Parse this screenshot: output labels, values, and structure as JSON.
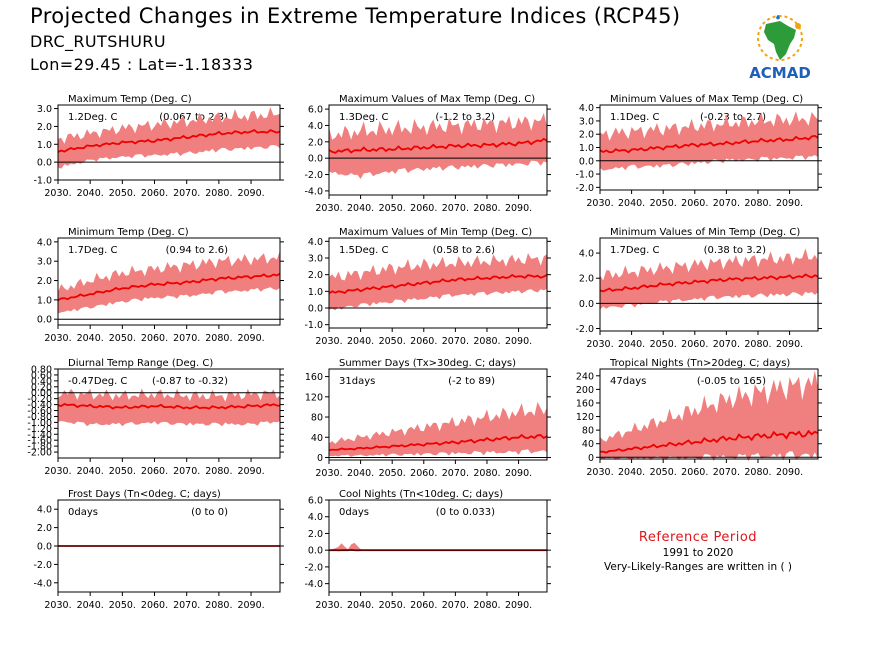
{
  "header": {
    "title": "Projected Changes in Extreme Temperature Indices (RCP45)",
    "location": "DRC_RUTSHURU",
    "coords": "Lon=29.45 : Lat=-1.18333"
  },
  "logo": {
    "text": "ACMAD",
    "icon": "africa-map-logo-icon"
  },
  "reference": {
    "title": "Reference Period",
    "years": "1991 to 2020",
    "note": "Very-Likely-Ranges are written in ( )"
  },
  "colors": {
    "band": "#f08080",
    "line": "#ee0000",
    "zero": "#000000"
  },
  "chart_data": [
    {
      "type": "area",
      "title": "Maximum Temp (Deg. C)",
      "value": "1.2Deg. C",
      "range": "(0.067 to 2.3)",
      "xlim": [
        2030,
        2099
      ],
      "ylim": [
        -1.0,
        3.2
      ],
      "yticks": [
        -1.0,
        0.0,
        1.0,
        2.0,
        3.0
      ],
      "ydec": 1,
      "x_ticks": [
        "2030.",
        "2040.",
        "2050.",
        "2060.",
        "2070.",
        "2080.",
        "2090."
      ],
      "series": [
        {
          "x": [
            2030,
            2040,
            2050,
            2060,
            2070,
            2080,
            2090,
            2099
          ],
          "median": [
            0.6,
            0.9,
            1.1,
            1.2,
            1.4,
            1.6,
            1.7,
            1.7
          ],
          "low": [
            -0.2,
            0.2,
            0.4,
            0.5,
            0.6,
            0.8,
            0.9,
            1.0
          ],
          "high": [
            1.3,
            1.6,
            1.9,
            2.1,
            2.3,
            2.5,
            2.6,
            2.7
          ]
        }
      ]
    },
    {
      "type": "area",
      "title": "Maximum Values of Max Temp (Deg. C)",
      "value": "1.3Deg. C",
      "range": "(-1.2 to 3.2)",
      "xlim": [
        2030,
        2099
      ],
      "ylim": [
        -4.5,
        6.5
      ],
      "yticks": [
        -4.0,
        -2.0,
        0.0,
        2.0,
        4.0,
        6.0
      ],
      "ydec": 1,
      "x_ticks": [
        "2030.",
        "2040.",
        "2050.",
        "2060.",
        "2070.",
        "2080.",
        "2090."
      ],
      "series": [
        {
          "x": [
            2030,
            2040,
            2050,
            2060,
            2070,
            2080,
            2090,
            2099
          ],
          "median": [
            0.8,
            1.0,
            1.1,
            1.3,
            1.5,
            1.6,
            1.8,
            2.2
          ],
          "low": [
            -1.5,
            -1.8,
            -1.3,
            -1.0,
            -0.8,
            -0.6,
            -0.4,
            -0.2
          ],
          "high": [
            2.8,
            3.3,
            3.6,
            3.8,
            4.0,
            4.2,
            4.4,
            4.6
          ]
        }
      ]
    },
    {
      "type": "area",
      "title": "Minimum Values of Max Temp (Deg. C)",
      "value": "1.1Deg. C",
      "range": "(-0.23 to 2.7)",
      "xlim": [
        2030,
        2099
      ],
      "ylim": [
        -2.2,
        4.2
      ],
      "yticks": [
        -2.0,
        -1.0,
        0.0,
        1.0,
        2.0,
        3.0,
        4.0
      ],
      "ydec": 1,
      "x_ticks": [
        "2030.",
        "2040.",
        "2050.",
        "2060.",
        "2070.",
        "2080.",
        "2090."
      ],
      "series": [
        {
          "x": [
            2030,
            2040,
            2050,
            2060,
            2070,
            2080,
            2090,
            2099
          ],
          "median": [
            0.7,
            0.8,
            1.0,
            1.2,
            1.3,
            1.5,
            1.6,
            1.8
          ],
          "low": [
            -0.5,
            -0.3,
            -0.2,
            0.0,
            0.2,
            0.3,
            0.4,
            0.5
          ],
          "high": [
            2.0,
            2.2,
            2.4,
            2.6,
            2.8,
            3.0,
            3.1,
            3.2
          ]
        }
      ]
    },
    {
      "type": "area",
      "title": "Minimum Temp (Deg. C)",
      "value": "1.7Deg. C",
      "range": "(0.94 to 2.6)",
      "xlim": [
        2030,
        2099
      ],
      "ylim": [
        -0.3,
        4.2
      ],
      "yticks": [
        0.0,
        1.0,
        2.0,
        3.0,
        4.0
      ],
      "ydec": 1,
      "x_ticks": [
        "2030.",
        "2040.",
        "2050.",
        "2060.",
        "2070.",
        "2080.",
        "2090."
      ],
      "series": [
        {
          "x": [
            2030,
            2040,
            2050,
            2060,
            2070,
            2080,
            2090,
            2099
          ],
          "median": [
            1.0,
            1.3,
            1.6,
            1.8,
            1.9,
            2.1,
            2.2,
            2.3
          ],
          "low": [
            0.4,
            0.7,
            1.0,
            1.2,
            1.3,
            1.5,
            1.6,
            1.7
          ],
          "high": [
            1.5,
            2.0,
            2.4,
            2.6,
            2.8,
            3.0,
            3.1,
            3.2
          ]
        }
      ]
    },
    {
      "type": "area",
      "title": "Maximum Values of Min Temp (Deg. C)",
      "value": "1.5Deg. C",
      "range": "(0.58 to 2.6)",
      "xlim": [
        2030,
        2099
      ],
      "ylim": [
        -1.2,
        4.2
      ],
      "yticks": [
        -1.0,
        0.0,
        1.0,
        2.0,
        3.0,
        4.0
      ],
      "ydec": 1,
      "x_ticks": [
        "2030.",
        "2040.",
        "2050.",
        "2060.",
        "2070.",
        "2080.",
        "2090."
      ],
      "series": [
        {
          "x": [
            2030,
            2040,
            2050,
            2060,
            2070,
            2080,
            2090,
            2099
          ],
          "median": [
            0.9,
            1.1,
            1.3,
            1.5,
            1.7,
            1.8,
            1.9,
            1.9
          ],
          "low": [
            0.0,
            0.3,
            0.5,
            0.7,
            0.9,
            1.0,
            1.1,
            1.2
          ],
          "high": [
            1.8,
            2.1,
            2.4,
            2.6,
            2.7,
            2.8,
            2.9,
            3.0
          ]
        }
      ]
    },
    {
      "type": "area",
      "title": "Minimum Values of Min Temp (Deg. C)",
      "value": "1.7Deg. C",
      "range": "(0.38 to 3.2)",
      "xlim": [
        2030,
        2099
      ],
      "ylim": [
        -2.2,
        5.2
      ],
      "yticks": [
        -2.0,
        0.0,
        2.0,
        4.0
      ],
      "ydec": 1,
      "x_ticks": [
        "2030.",
        "2040.",
        "2050.",
        "2060.",
        "2070.",
        "2080.",
        "2090."
      ],
      "series": [
        {
          "x": [
            2030,
            2040,
            2050,
            2060,
            2070,
            2080,
            2090,
            2099
          ],
          "median": [
            1.0,
            1.2,
            1.5,
            1.7,
            1.9,
            2.0,
            2.1,
            2.2
          ],
          "low": [
            -0.2,
            0.0,
            0.3,
            0.5,
            0.7,
            0.8,
            0.9,
            1.0
          ],
          "high": [
            2.2,
            2.5,
            2.8,
            3.1,
            3.3,
            3.5,
            3.6,
            3.8
          ]
        }
      ]
    },
    {
      "type": "area",
      "title": "Diurnal Temp Range (Deg. C)",
      "value": "-0.47Deg. C",
      "range": "(-0.87 to -0.32)",
      "xlim": [
        2030,
        2099
      ],
      "ylim": [
        -2.2,
        0.8
      ],
      "yticks": [
        -2.0,
        -1.8,
        -1.6,
        -1.4,
        -1.2,
        -1.0,
        -0.8,
        -0.6,
        -0.4,
        -0.2,
        0.0,
        0.2,
        0.4,
        0.6,
        0.8
      ],
      "ydec": 2,
      "x_ticks": [
        "2030.",
        "2040.",
        "2050.",
        "2060.",
        "2070.",
        "2080.",
        "2090."
      ],
      "series": [
        {
          "x": [
            2030,
            2040,
            2050,
            2060,
            2070,
            2080,
            2090,
            2099
          ],
          "median": [
            -0.4,
            -0.45,
            -0.5,
            -0.45,
            -0.5,
            -0.5,
            -0.45,
            -0.4
          ],
          "low": [
            -0.9,
            -1.0,
            -1.0,
            -0.95,
            -1.0,
            -1.0,
            -1.0,
            -0.9
          ],
          "high": [
            0.0,
            -0.05,
            -0.1,
            -0.05,
            -0.1,
            -0.1,
            -0.05,
            0.0
          ]
        }
      ]
    },
    {
      "type": "area",
      "title": "Summer Days (Tx>30deg. C; days)",
      "value": "31days",
      "range": "(-2 to 89)",
      "xlim": [
        2030,
        2099
      ],
      "ylim": [
        -5,
        175
      ],
      "yticks": [
        0,
        40,
        80,
        120,
        160
      ],
      "ydec": 0,
      "x_ticks": [
        "2030.",
        "2040.",
        "2050.",
        "2060.",
        "2070.",
        "2080.",
        "2090."
      ],
      "series": [
        {
          "x": [
            2030,
            2040,
            2050,
            2060,
            2070,
            2080,
            2090,
            2099
          ],
          "median": [
            15,
            18,
            22,
            26,
            30,
            35,
            40,
            42
          ],
          "low": [
            5,
            6,
            8,
            10,
            12,
            14,
            16,
            18
          ],
          "high": [
            30,
            40,
            50,
            60,
            70,
            80,
            90,
            95
          ]
        }
      ]
    },
    {
      "type": "area",
      "title": "Tropical Nights (Tn>20deg. C; days)",
      "value": "47days",
      "range": "(-0.05 to 165)",
      "xlim": [
        2030,
        2099
      ],
      "ylim": [
        -5,
        260
      ],
      "yticks": [
        0,
        40,
        80,
        120,
        160,
        200,
        240
      ],
      "ydec": 0,
      "x_ticks": [
        "2030.",
        "2040.",
        "2050.",
        "2060.",
        "2070.",
        "2080.",
        "2090."
      ],
      "series": [
        {
          "x": [
            2030,
            2040,
            2050,
            2060,
            2070,
            2080,
            2090,
            2099
          ],
          "median": [
            15,
            25,
            35,
            45,
            55,
            62,
            68,
            70
          ],
          "low": [
            0,
            2,
            5,
            8,
            12,
            15,
            18,
            20
          ],
          "high": [
            50,
            80,
            110,
            140,
            170,
            190,
            210,
            220
          ]
        }
      ]
    },
    {
      "type": "area",
      "title": "Frost Days (Tn<0deg. C; days)",
      "value": "0days",
      "range": "(0 to 0)",
      "xlim": [
        2030,
        2099
      ],
      "ylim": [
        -5,
        5
      ],
      "yticks": [
        -4.0,
        -2.0,
        0.0,
        2.0,
        4.0
      ],
      "ydec": 1,
      "x_ticks": [
        "2030.",
        "2040.",
        "2050.",
        "2060.",
        "2070.",
        "2080.",
        "2090."
      ],
      "series": [
        {
          "x": [
            2030,
            2099
          ],
          "median": [
            0,
            0
          ],
          "low": [
            0,
            0
          ],
          "high": [
            0,
            0
          ]
        }
      ]
    },
    {
      "type": "area",
      "title": "Cool Nights (Tn<10deg. C; days)",
      "value": "0days",
      "range": "(0 to 0.033)",
      "xlim": [
        2030,
        2099
      ],
      "ylim": [
        -5,
        6
      ],
      "yticks": [
        -4.0,
        -2.0,
        0.0,
        2.0,
        4.0,
        6.0
      ],
      "ydec": 1,
      "x_ticks": [
        "2030.",
        "2040.",
        "2050.",
        "2060.",
        "2070.",
        "2080.",
        "2090."
      ],
      "series": [
        {
          "x": [
            2030,
            2032,
            2034,
            2036,
            2038,
            2040,
            2042,
            2099
          ],
          "median": [
            0,
            0,
            0,
            0,
            0,
            0,
            0,
            0
          ],
          "low": [
            0,
            0,
            0,
            0,
            0,
            0,
            0,
            0
          ],
          "high": [
            0,
            0.2,
            0.8,
            0.1,
            1.0,
            0.1,
            0,
            0
          ]
        }
      ]
    }
  ]
}
